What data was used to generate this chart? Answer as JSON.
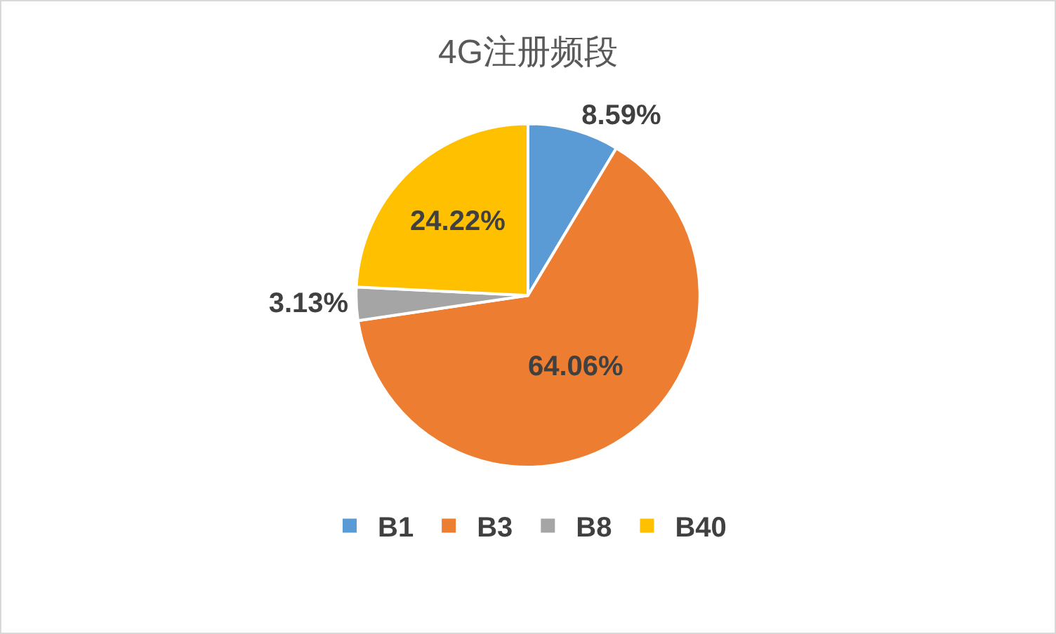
{
  "chart_data": {
    "type": "pie",
    "title": "4G注册频段",
    "categories": [
      "B1",
      "B3",
      "B8",
      "B40"
    ],
    "values": [
      8.59,
      64.06,
      3.13,
      24.22
    ],
    "colors": [
      "#5b9bd5",
      "#ed7d31",
      "#a5a5a5",
      "#ffc000"
    ],
    "value_labels": [
      "8.59%",
      "64.06%",
      "3.13%",
      "24.22%"
    ],
    "legend": "bottom"
  }
}
